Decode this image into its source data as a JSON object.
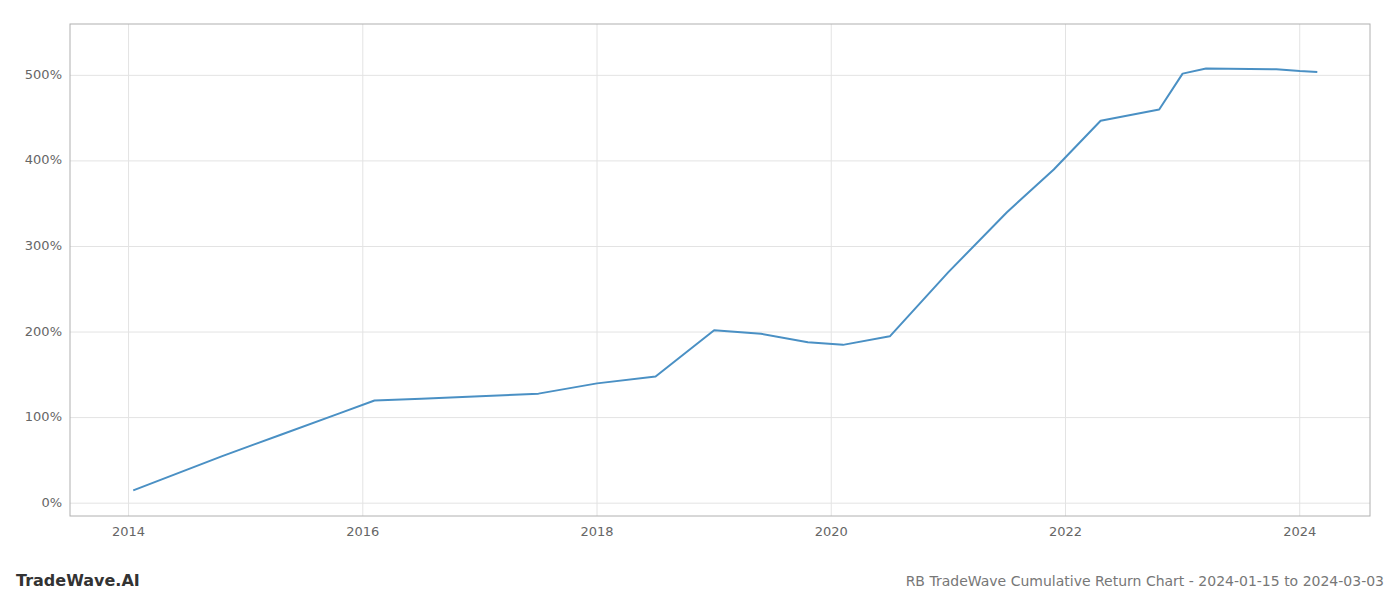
{
  "chart_data": {
    "type": "line",
    "title": "RB TradeWave Cumulative Return Chart - 2024-01-15 to 2024-03-03",
    "annotations": [
      "TradeWave.AI"
    ],
    "x": [
      2014.04,
      2014.8,
      2015.3,
      2015.8,
      2016.1,
      2016.5,
      2017.0,
      2017.5,
      2018.0,
      2018.5,
      2019.0,
      2019.4,
      2019.8,
      2020.1,
      2020.5,
      2021.0,
      2021.5,
      2021.9,
      2022.3,
      2022.8,
      2023.0,
      2023.2,
      2023.8,
      2024.0,
      2024.15
    ],
    "values": [
      15,
      55,
      80,
      105,
      120,
      122,
      125,
      128,
      140,
      148,
      202,
      198,
      188,
      185,
      195,
      270,
      340,
      390,
      447,
      460,
      502,
      508,
      507,
      505,
      504
    ],
    "color": "#4a90c4",
    "xlim": [
      2013.5,
      2024.6
    ],
    "ylim": [
      -15,
      560
    ],
    "xticks": [
      2014,
      2016,
      2018,
      2020,
      2022,
      2024
    ],
    "yticks": [
      {
        "value": 0,
        "label": "0%"
      },
      {
        "value": 100,
        "label": "100%"
      },
      {
        "value": 200,
        "label": "200%"
      },
      {
        "value": 300,
        "label": "300%"
      },
      {
        "value": 400,
        "label": "400%"
      },
      {
        "value": 500,
        "label": "500%"
      }
    ],
    "grid": true
  }
}
